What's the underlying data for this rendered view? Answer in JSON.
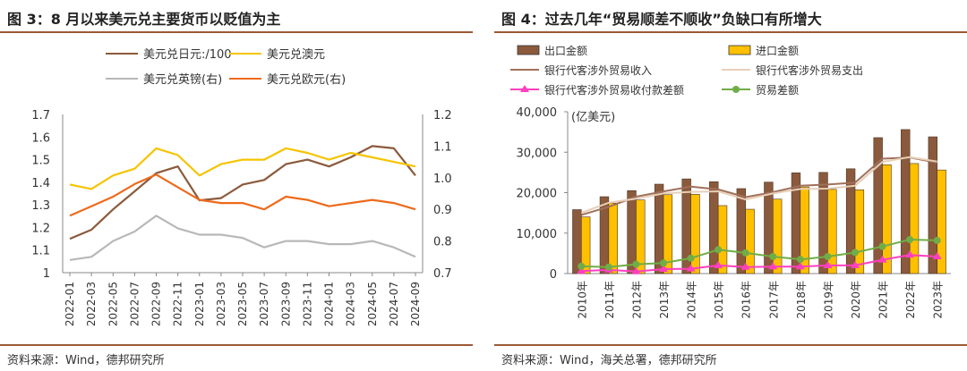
{
  "left": {
    "title": "图 3：8 月以来美元兑主要货币以贬值为主",
    "source": "资料来源：Wind，德邦研究所"
  },
  "right": {
    "title": "图 4：过去几年“贸易顺差不顺收”负缺口有所增大",
    "source": "资料来源：Wind，海关总署，德邦研究所"
  },
  "chart_data": [
    {
      "type": "line",
      "x": [
        "2022-01",
        "2022-03",
        "2022-05",
        "2022-07",
        "2022-09",
        "2022-11",
        "2023-01",
        "2023-03",
        "2023-05",
        "2023-07",
        "2023-09",
        "2023-11",
        "2024-01",
        "2024-03",
        "2024-05",
        "2024-07",
        "2024-09"
      ],
      "ylim": [
        1.0,
        1.7
      ],
      "yticks": [
        1,
        1.1,
        1.2,
        1.3,
        1.4,
        1.5,
        1.6,
        1.7
      ],
      "y2lim": [
        0.7,
        1.2
      ],
      "y2ticks": [
        0.7,
        0.8,
        0.9,
        1.0,
        1.1,
        1.2
      ],
      "grid": false,
      "legend_position": "top",
      "series": [
        {
          "name": "美元兑日元:/100",
          "axis": "left",
          "color": "#8B5A3C",
          "values": [
            1.15,
            1.19,
            1.28,
            1.36,
            1.44,
            1.47,
            1.32,
            1.33,
            1.39,
            1.41,
            1.48,
            1.5,
            1.47,
            1.51,
            1.56,
            1.55,
            1.43
          ]
        },
        {
          "name": "美元兑澳元",
          "axis": "left",
          "color": "#F5C400",
          "values": [
            1.39,
            1.37,
            1.43,
            1.46,
            1.55,
            1.52,
            1.43,
            1.48,
            1.5,
            1.5,
            1.55,
            1.53,
            1.5,
            1.53,
            1.51,
            1.49,
            1.47
          ]
        },
        {
          "name": "美元兑英镑(右)",
          "axis": "right",
          "color": "#B8B8B8",
          "values": [
            0.74,
            0.75,
            0.8,
            0.83,
            0.88,
            0.84,
            0.82,
            0.82,
            0.81,
            0.78,
            0.8,
            0.8,
            0.79,
            0.79,
            0.8,
            0.78,
            0.75
          ]
        },
        {
          "name": "美元兑欧元(右)",
          "axis": "right",
          "color": "#EE6A1C",
          "values": [
            0.88,
            0.91,
            0.94,
            0.98,
            1.01,
            0.97,
            0.93,
            0.92,
            0.92,
            0.9,
            0.94,
            0.93,
            0.91,
            0.92,
            0.93,
            0.92,
            0.9
          ]
        }
      ]
    },
    {
      "type": "bar",
      "unit_label": "(亿美元)",
      "categories": [
        "2010年",
        "2011年",
        "2012年",
        "2013年",
        "2014年",
        "2015年",
        "2016年",
        "2017年",
        "2018年",
        "2019年",
        "2020年",
        "2021年",
        "2022年",
        "2023年"
      ],
      "ylim": [
        0,
        40000
      ],
      "yticks": [
        0,
        10000,
        20000,
        30000,
        40000
      ],
      "ytick_labels": [
        "0",
        "10,000",
        "20,000",
        "30,000",
        "40,000"
      ],
      "grid": false,
      "legend_position": "top",
      "series": [
        {
          "name": "出口金额",
          "kind": "bar",
          "color": "#8B5A3C",
          "values": [
            15800,
            19000,
            20500,
            22100,
            23400,
            22700,
            21000,
            22600,
            24900,
            25000,
            25900,
            33600,
            35600,
            33800
          ]
        },
        {
          "name": "进口金额",
          "kind": "bar",
          "color": "#FFC000",
          "values": [
            14000,
            17400,
            18200,
            19500,
            19600,
            16800,
            15900,
            18400,
            21400,
            20800,
            20700,
            26900,
            27200,
            25600
          ]
        },
        {
          "name": "银行代客涉外贸易收入",
          "kind": "line",
          "color": "#A0705A",
          "values": [
            14500,
            16500,
            19000,
            20300,
            21500,
            20800,
            18900,
            20100,
            21700,
            22000,
            22500,
            28400,
            28700,
            27400
          ]
        },
        {
          "name": "银行代客涉外贸易支出",
          "kind": "line",
          "color": "#E7CFB7",
          "values": [
            15000,
            17500,
            18500,
            19800,
            20200,
            20300,
            18300,
            19800,
            20900,
            21000,
            21700,
            27600,
            28800,
            27700
          ]
        },
        {
          "name": "银行代客涉外贸易收付款差额",
          "kind": "line",
          "marker": "triangle",
          "color": "#FF3FBF",
          "values": [
            600,
            900,
            500,
            1100,
            1200,
            2000,
            1600,
            1700,
            1700,
            2000,
            2000,
            3400,
            4600,
            4200
          ]
        },
        {
          "name": "贸易差额",
          "kind": "line",
          "marker": "circle",
          "color": "#70AD47",
          "values": [
            1800,
            1600,
            2300,
            2600,
            3800,
            5900,
            5100,
            4200,
            3500,
            4200,
            5200,
            6700,
            8400,
            8200
          ]
        }
      ]
    }
  ]
}
